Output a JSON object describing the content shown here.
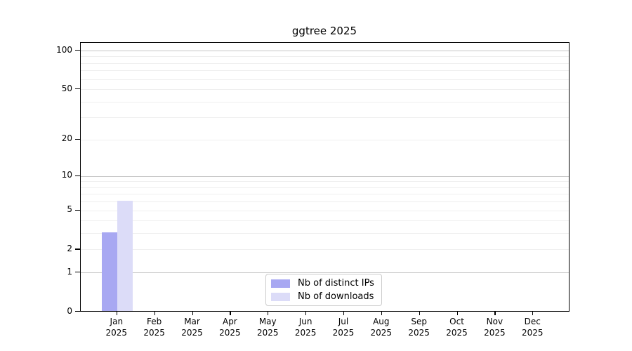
{
  "title": "ggtree 2025",
  "legend": {
    "items": [
      {
        "label": "Nb of distinct IPs",
        "color": "#a8a8f2"
      },
      {
        "label": "Nb of downloads",
        "color": "#dcdcf8"
      }
    ]
  },
  "y_axis": {
    "tick_values": [
      0,
      1,
      2,
      5,
      10,
      20,
      50,
      100
    ],
    "tick_labels": [
      "0",
      "1",
      "2",
      "5",
      "10",
      "20",
      "50",
      "100"
    ],
    "scale": "log10(1+x)",
    "ylim": [
      0,
      100
    ]
  },
  "x_axis": {
    "months": [
      "Jan",
      "Feb",
      "Mar",
      "Apr",
      "May",
      "Jun",
      "Jul",
      "Aug",
      "Sep",
      "Oct",
      "Nov",
      "Dec"
    ],
    "year": "2025"
  },
  "colors": {
    "bar_ips": "#a8a8f2",
    "bar_downloads": "#dcdcf8",
    "grid_major": "#c6c6c6",
    "grid_minor": "#efefef",
    "axis": "#000000",
    "legend_border": "#cccccc"
  },
  "chart_data": {
    "type": "bar",
    "title": "ggtree 2025",
    "categories": [
      "Jan 2025",
      "Feb 2025",
      "Mar 2025",
      "Apr 2025",
      "May 2025",
      "Jun 2025",
      "Jul 2025",
      "Aug 2025",
      "Sep 2025",
      "Oct 2025",
      "Nov 2025",
      "Dec 2025"
    ],
    "series": [
      {
        "name": "Nb of distinct IPs",
        "color": "#a8a8f2",
        "values": [
          3,
          0,
          0,
          0,
          0,
          0,
          0,
          0,
          0,
          0,
          0,
          0
        ]
      },
      {
        "name": "Nb of downloads",
        "color": "#dcdcf8",
        "values": [
          6,
          0,
          0,
          0,
          0,
          0,
          0,
          0,
          0,
          0,
          0,
          0
        ]
      }
    ],
    "xlabel": "",
    "ylabel": "",
    "ylim": [
      0,
      100
    ],
    "yscale": "log10(1+x)",
    "y_ticks": [
      0,
      1,
      2,
      5,
      10,
      20,
      50,
      100
    ],
    "grid": "horizontal",
    "legend_position": "lower center"
  }
}
